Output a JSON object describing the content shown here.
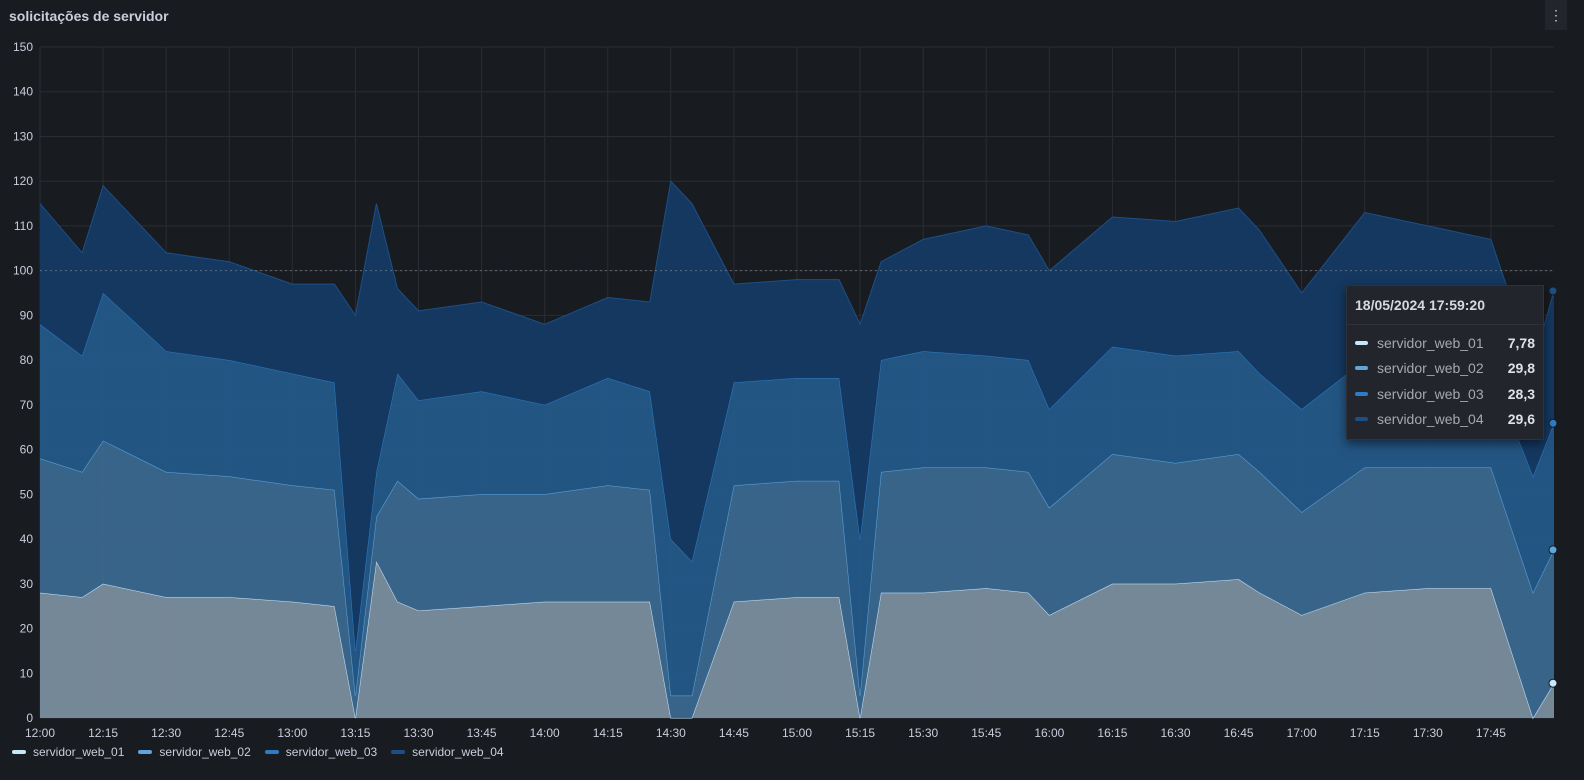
{
  "panel": {
    "title": "solicitações de servidor",
    "menu_icon": "kebab-menu-icon"
  },
  "tooltip": {
    "time": "18/05/2024 17:59:20",
    "rows": [
      {
        "label": "servidor_web_01",
        "value": "7,78",
        "color": "#c8e6fb"
      },
      {
        "label": "servidor_web_02",
        "value": "29,8",
        "color": "#5ea5dc"
      },
      {
        "label": "servidor_web_03",
        "value": "28,3",
        "color": "#2e7cc7"
      },
      {
        "label": "servidor_web_04",
        "value": "29,6",
        "color": "#1d4f86"
      }
    ]
  },
  "legend": [
    {
      "label": "servidor_web_01",
      "color": "#c8e6fb"
    },
    {
      "label": "servidor_web_02",
      "color": "#5ea5dc"
    },
    {
      "label": "servidor_web_03",
      "color": "#2e7cc7"
    },
    {
      "label": "servidor_web_04",
      "color": "#1d4f86"
    }
  ],
  "chart_data": {
    "type": "area",
    "stacked": true,
    "title": "solicitações de servidor",
    "xlabel": "",
    "ylabel": "",
    "x_ticks": [
      "12:00",
      "12:15",
      "12:30",
      "12:45",
      "13:00",
      "13:15",
      "13:30",
      "13:45",
      "14:00",
      "14:15",
      "14:30",
      "14:45",
      "15:00",
      "15:15",
      "15:30",
      "15:45",
      "16:00",
      "16:15",
      "16:30",
      "16:45",
      "17:00",
      "17:15",
      "17:30",
      "17:45"
    ],
    "y_ticks": [
      0,
      10,
      20,
      30,
      40,
      50,
      60,
      70,
      80,
      90,
      100,
      110,
      120,
      130,
      140,
      150
    ],
    "ylim": [
      0,
      150
    ],
    "grid": true,
    "legend_position": "bottom-left",
    "threshold_line": 100,
    "x": [
      "12:00",
      "12:10",
      "12:15",
      "12:30",
      "12:45",
      "13:00",
      "13:10",
      "13:15",
      "13:20",
      "13:25",
      "13:30",
      "13:45",
      "14:00",
      "14:15",
      "14:25",
      "14:30",
      "14:35",
      "14:45",
      "15:00",
      "15:10",
      "15:15",
      "15:20",
      "15:30",
      "15:45",
      "15:55",
      "16:00",
      "16:15",
      "16:30",
      "16:45",
      "16:50",
      "17:00",
      "17:15",
      "17:30",
      "17:45",
      "17:55",
      "18:00"
    ],
    "series": [
      {
        "name": "servidor_web_01",
        "color": "#c8e6fb",
        "values": [
          28,
          27,
          30,
          27,
          27,
          26,
          25,
          0,
          35,
          26,
          24,
          25,
          26,
          26,
          26,
          0,
          0,
          26,
          27,
          27,
          0,
          28,
          28,
          29,
          28,
          23,
          30,
          30,
          31,
          28,
          23,
          28,
          29,
          29,
          0,
          7.78
        ]
      },
      {
        "name": "servidor_web_02",
        "color": "#5ea5dc",
        "values": [
          30,
          28,
          32,
          28,
          27,
          26,
          26,
          5,
          10,
          27,
          25,
          25,
          24,
          26,
          25,
          5,
          5,
          26,
          26,
          26,
          5,
          27,
          28,
          27,
          27,
          24,
          29,
          27,
          28,
          27,
          23,
          28,
          27,
          27,
          28,
          29.8
        ]
      },
      {
        "name": "servidor_web_03",
        "color": "#2e7cc7",
        "values": [
          30,
          26,
          33,
          27,
          26,
          25,
          24,
          10,
          10,
          24,
          22,
          23,
          20,
          24,
          22,
          35,
          30,
          23,
          23,
          23,
          35,
          25,
          26,
          25,
          25,
          22,
          24,
          24,
          23,
          22,
          23,
          24,
          23,
          22,
          26,
          28.3
        ]
      },
      {
        "name": "servidor_web_04",
        "color": "#1d4f86",
        "values": [
          27,
          23,
          24,
          22,
          22,
          20,
          22,
          75,
          60,
          19,
          20,
          20,
          18,
          18,
          20,
          80,
          80,
          22,
          22,
          22,
          48,
          22,
          25,
          29,
          28,
          31,
          29,
          30,
          32,
          32,
          26,
          33,
          31,
          29,
          25,
          29.6
        ]
      }
    ]
  }
}
